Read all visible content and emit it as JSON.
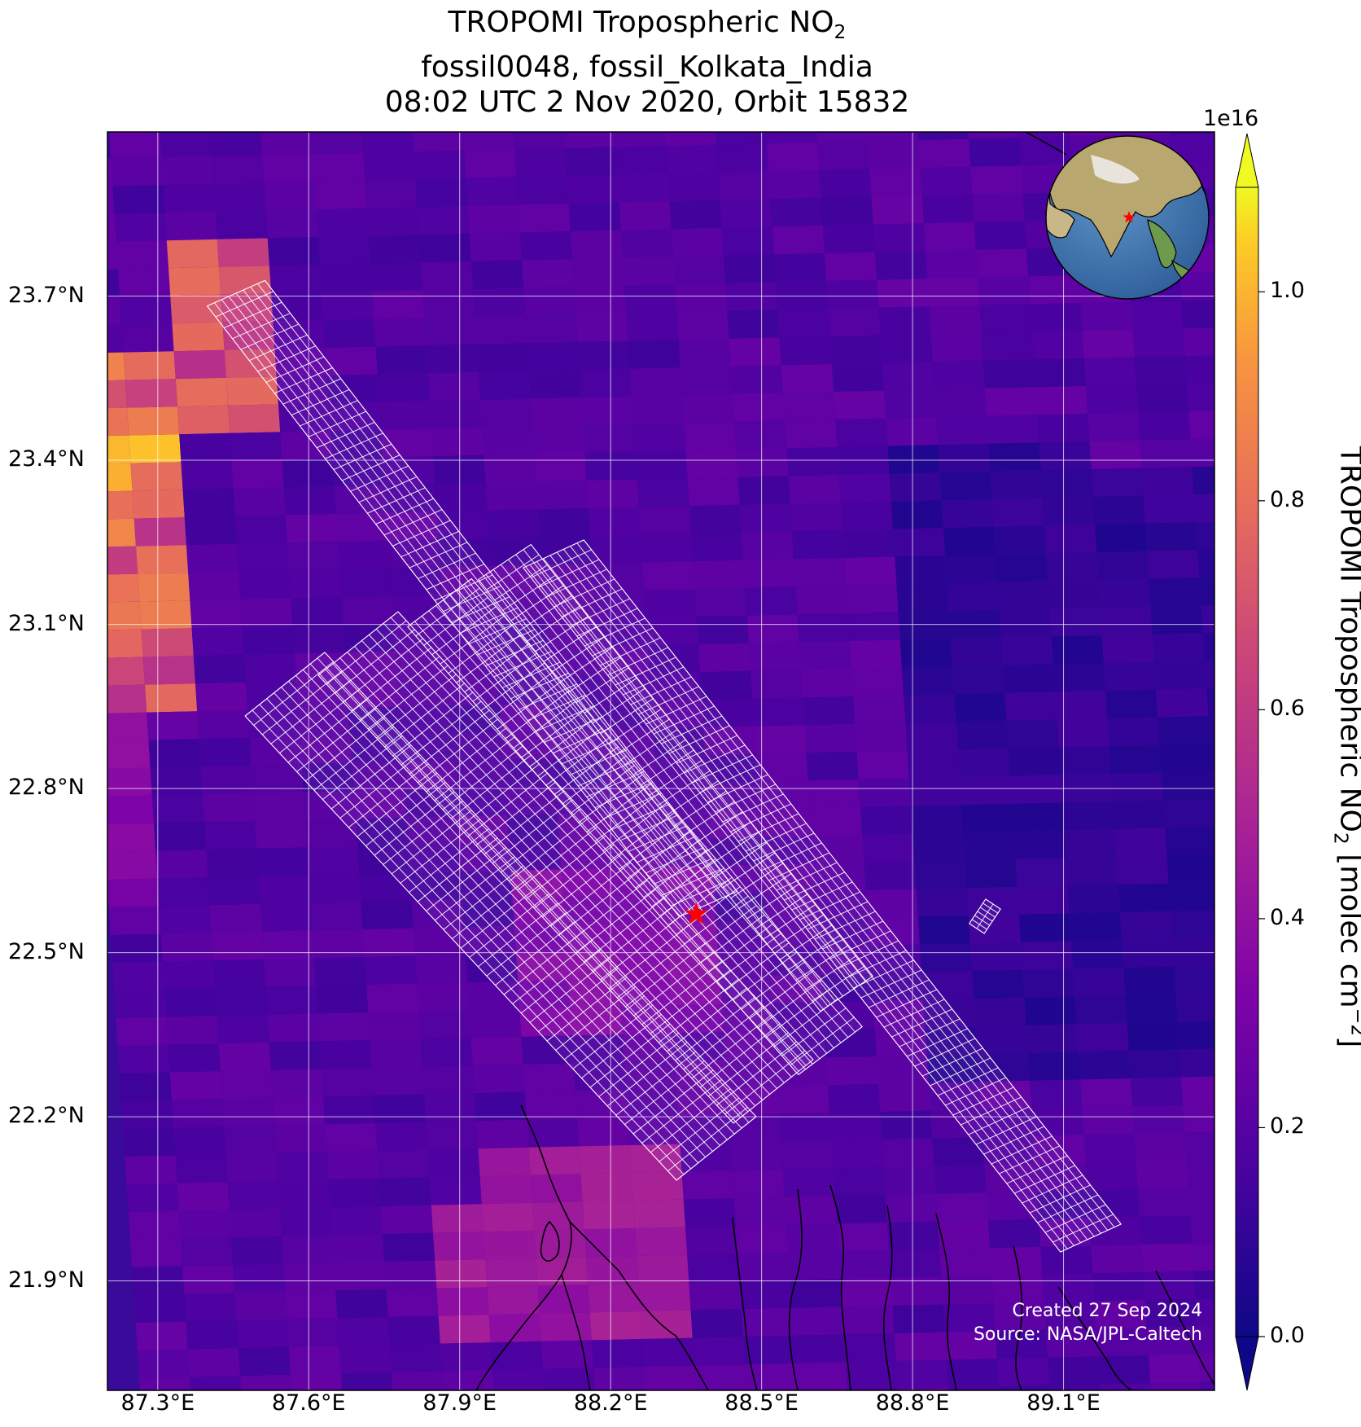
{
  "title": {
    "line1_prefix": "TROPOMI Tropospheric NO",
    "line1_sub": "2",
    "line2": "fossil0048, fossil_Kolkata_India",
    "line3": "08:02 UTC 2 Nov 2020, Orbit 15832"
  },
  "map": {
    "extent": {
      "lon_min": 87.2,
      "lon_max": 89.4,
      "lat_min": 21.7,
      "lat_max": 24.0
    },
    "target": {
      "lon": 88.37,
      "lat": 22.57,
      "marker": "red-star"
    },
    "lat_ticks": [
      "23.7°N",
      "23.4°N",
      "23.1°N",
      "22.8°N",
      "22.5°N",
      "22.2°N",
      "21.9°N"
    ],
    "lat_values": [
      23.7,
      23.4,
      23.1,
      22.8,
      22.5,
      22.2,
      21.9
    ],
    "lon_ticks": [
      "87.3°E",
      "87.6°E",
      "87.9°E",
      "88.2°E",
      "88.5°E",
      "88.8°E",
      "89.1°E"
    ],
    "lon_values": [
      87.3,
      87.6,
      87.9,
      88.2,
      88.5,
      88.8,
      89.1
    ],
    "grid": true,
    "inset": "globe-asia-locator"
  },
  "colorbar": {
    "exponent": "1e16",
    "ticks": [
      "1.0",
      "0.8",
      "0.6",
      "0.4",
      "0.2",
      "0.0"
    ],
    "tick_values": [
      1.0,
      0.8,
      0.6,
      0.4,
      0.2,
      0.0
    ],
    "vmin": 0.0,
    "vmax": 1.1,
    "label_prefix": "TROPOMI Tropospheric NO",
    "label_sub": "2",
    "label_mid": " [molec cm",
    "label_sup": "−2",
    "label_suffix": "]",
    "colormap": "plasma"
  },
  "credits": {
    "created": "Created 27 Sep 2024",
    "source": "Source: NASA/JPL-Caltech"
  }
}
